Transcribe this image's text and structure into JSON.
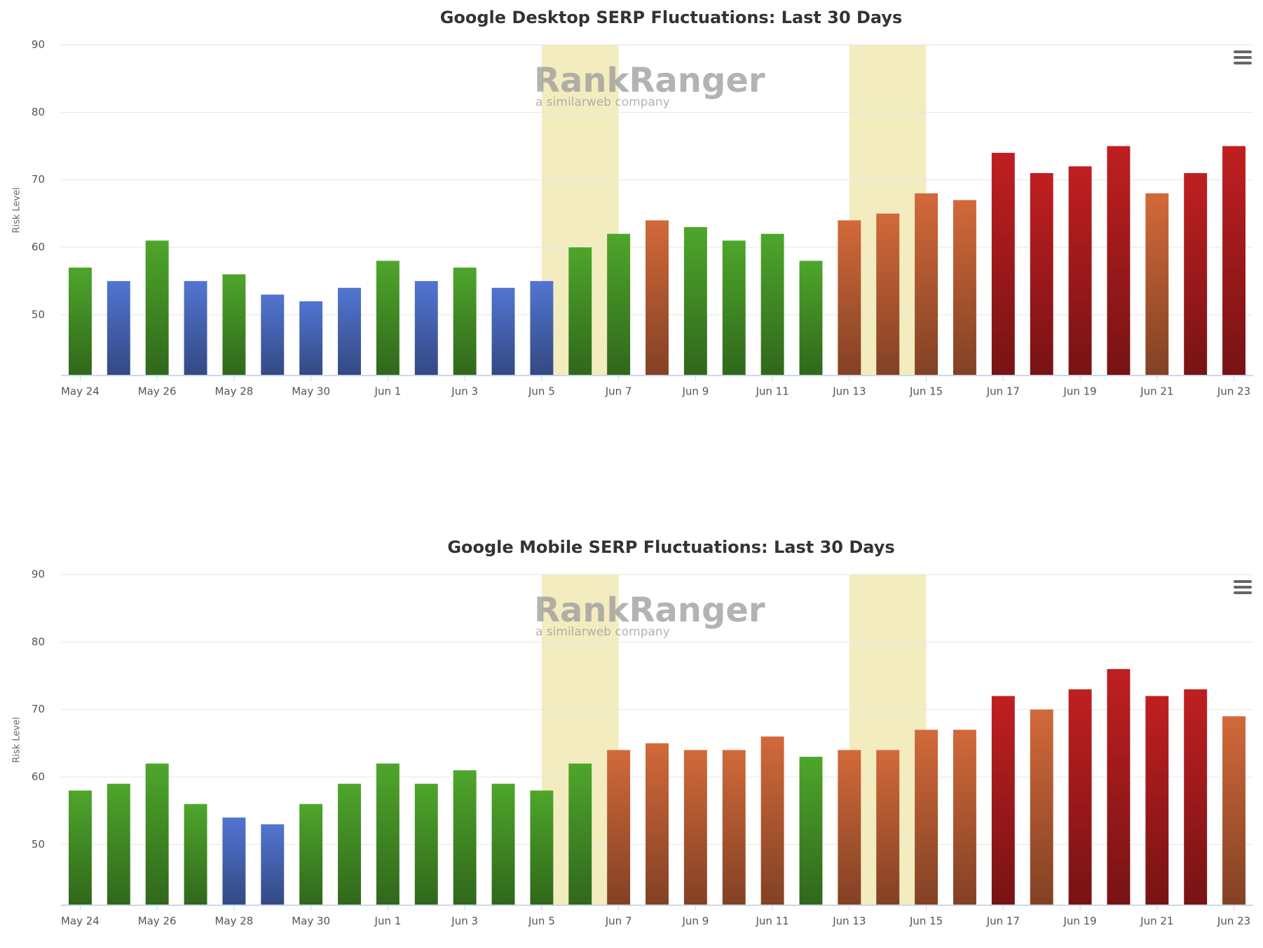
{
  "chart_data": [
    {
      "type": "bar",
      "title": "Google Desktop SERP Fluctuations: Last 30 Days",
      "y_label": "Risk Level",
      "watermark": {
        "title": "RankRanger",
        "subtitle": "a similarweb company"
      },
      "categories": [
        "May 24",
        null,
        "May 26",
        null,
        "May 28",
        null,
        "May 30",
        null,
        "Jun 1",
        null,
        "Jun 3",
        null,
        "Jun 5",
        null,
        "Jun 7",
        null,
        "Jun 9",
        null,
        "Jun 11",
        null,
        "Jun 13",
        null,
        "Jun 15",
        null,
        "Jun 17",
        null,
        "Jun 19",
        null,
        "Jun 21",
        null,
        "Jun 23"
      ],
      "values": [
        57,
        55,
        61,
        55,
        56,
        53,
        52,
        54,
        58,
        55,
        57,
        54,
        55,
        60,
        62,
        64,
        63,
        61,
        62,
        58,
        64,
        65,
        68,
        67,
        74,
        71,
        72,
        75,
        68,
        71,
        75
      ],
      "colors": [
        "#4ea62b",
        "#5275d2",
        "#4ea62b",
        "#5275d2",
        "#4ea62b",
        "#5275d2",
        "#5275d2",
        "#5275d2",
        "#4ea62b",
        "#5275d2",
        "#4ea62b",
        "#5275d2",
        "#5275d2",
        "#4ea62b",
        "#4ea62b",
        "#d2693a",
        "#4ea62b",
        "#4ea62b",
        "#4ea62b",
        "#4ea62b",
        "#d2693a",
        "#d2693a",
        "#d2693a",
        "#d2693a",
        "#c01f21",
        "#c01f21",
        "#c01f21",
        "#c01f21",
        "#d2693a",
        "#c01f21",
        "#c01f21"
      ],
      "bands": [
        [
          12,
          14
        ],
        [
          20,
          22
        ]
      ],
      "band_color": "#f3ecbf",
      "ylim": [
        41,
        90
      ],
      "yticks": [
        50,
        60,
        70,
        80,
        90
      ],
      "grid": true
    },
    {
      "type": "bar",
      "title": "Google Mobile SERP Fluctuations: Last 30 Days",
      "y_label": "Risk Level",
      "watermark": {
        "title": "RankRanger",
        "subtitle": "a similarweb company"
      },
      "categories": [
        "May 24",
        null,
        "May 26",
        null,
        "May 28",
        null,
        "May 30",
        null,
        "Jun 1",
        null,
        "Jun 3",
        null,
        "Jun 5",
        null,
        "Jun 7",
        null,
        "Jun 9",
        null,
        "Jun 11",
        null,
        "Jun 13",
        null,
        "Jun 15",
        null,
        "Jun 17",
        null,
        "Jun 19",
        null,
        "Jun 21",
        null,
        "Jun 23"
      ],
      "values": [
        58,
        59,
        62,
        56,
        54,
        53,
        56,
        59,
        62,
        59,
        61,
        59,
        58,
        62,
        64,
        65,
        64,
        64,
        66,
        63,
        64,
        64,
        67,
        67,
        72,
        70,
        73,
        76,
        72,
        73,
        69
      ],
      "colors": [
        "#4ea62b",
        "#4ea62b",
        "#4ea62b",
        "#4ea62b",
        "#5275d2",
        "#5275d2",
        "#4ea62b",
        "#4ea62b",
        "#4ea62b",
        "#4ea62b",
        "#4ea62b",
        "#4ea62b",
        "#4ea62b",
        "#4ea62b",
        "#d2693a",
        "#d2693a",
        "#d2693a",
        "#d2693a",
        "#d2693a",
        "#4ea62b",
        "#d2693a",
        "#d2693a",
        "#d2693a",
        "#d2693a",
        "#c01f21",
        "#d2693a",
        "#c01f21",
        "#c01f21",
        "#c01f21",
        "#c01f21",
        "#d2693a"
      ],
      "bands": [
        [
          12,
          14
        ],
        [
          20,
          22
        ]
      ],
      "band_color": "#f3ecbf",
      "ylim": [
        41,
        90
      ],
      "yticks": [
        50,
        60,
        70,
        80,
        90
      ],
      "grid": true
    }
  ]
}
